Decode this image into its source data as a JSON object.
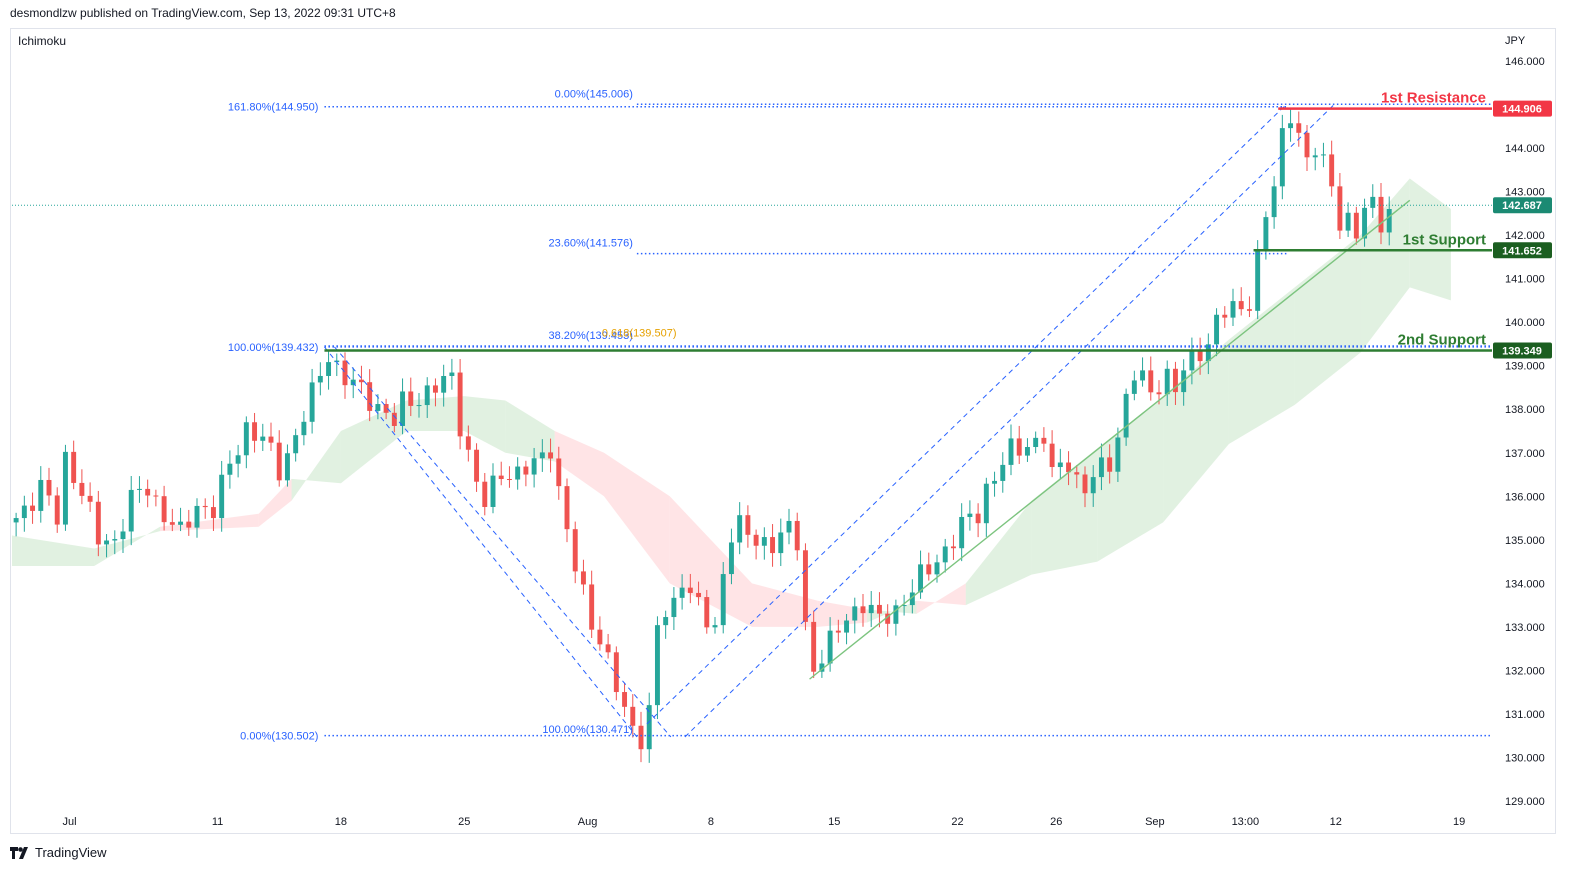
{
  "header": {
    "published": "desmondlzw published on TradingView.com, Sep 13, 2022 09:31 UTC+8"
  },
  "indicator": {
    "name": "Ichimoku"
  },
  "branding": {
    "logo_text": "TradingView"
  },
  "colors": {
    "up": "#26a69a",
    "down": "#ef5350",
    "fib": "#2962ff",
    "support": "#2e7d32",
    "resistance": "#f23645",
    "trendline": "#7cc47f",
    "cloud_green": "#c8e6c9",
    "cloud_red": "#ffcdd2"
  },
  "chart_data": {
    "type": "candlestick",
    "symbol_currency": "JPY",
    "y_axis": {
      "min": 128.75,
      "max": 146.6,
      "ticks": [
        146.0,
        145.0,
        144.0,
        143.0,
        142.0,
        141.0,
        140.0,
        139.0,
        138.0,
        137.0,
        136.0,
        135.0,
        134.0,
        133.0,
        132.0,
        131.0,
        130.0,
        129.0
      ]
    },
    "y_tick_labels": [
      "146.000",
      "145.000",
      "144.000",
      "143.000",
      "142.000",
      "141.000",
      "140.000",
      "139.000",
      "138.000",
      "137.000",
      "136.000",
      "135.000",
      "134.000",
      "133.000",
      "132.000",
      "131.000",
      "130.000",
      "129.000"
    ],
    "x_axis": {
      "bars": 180,
      "labels": [
        {
          "label": "Jul",
          "bar": 7
        },
        {
          "label": "11",
          "bar": 25
        },
        {
          "label": "18",
          "bar": 40
        },
        {
          "label": "25",
          "bar": 55
        },
        {
          "label": "Aug",
          "bar": 70
        },
        {
          "label": "8",
          "bar": 85
        },
        {
          "label": "15",
          "bar": 100
        },
        {
          "label": "22",
          "bar": 115
        },
        {
          "label": "26",
          "bar": 127
        },
        {
          "label": "Sep",
          "bar": 139
        },
        {
          "label": "13:00",
          "bar": 150
        },
        {
          "label": "12",
          "bar": 161
        },
        {
          "label": "19",
          "bar": 176
        }
      ]
    },
    "price_path": [
      [
        0,
        135.5
      ],
      [
        3,
        136.2
      ],
      [
        5,
        135.5
      ],
      [
        6,
        136.9
      ],
      [
        8,
        136.1
      ],
      [
        10,
        135.0
      ],
      [
        12,
        135.0
      ],
      [
        14,
        135.9
      ],
      [
        16,
        136.2
      ],
      [
        18,
        135.6
      ],
      [
        20,
        135.1
      ],
      [
        22,
        135.8
      ],
      [
        24,
        135.7
      ],
      [
        26,
        136.7
      ],
      [
        28,
        137.6
      ],
      [
        30,
        137.3
      ],
      [
        32,
        136.6
      ],
      [
        34,
        137.4
      ],
      [
        36,
        138.3
      ],
      [
        38,
        139.3
      ],
      [
        40,
        138.7
      ],
      [
        42,
        138.4
      ],
      [
        44,
        138.1
      ],
      [
        46,
        137.7
      ],
      [
        47,
        138.1
      ],
      [
        49,
        138.3
      ],
      [
        51,
        138.5
      ],
      [
        53,
        138.7
      ],
      [
        54,
        137.7
      ],
      [
        56,
        136.3
      ],
      [
        57,
        135.8
      ],
      [
        59,
        136.6
      ],
      [
        61,
        136.5
      ],
      [
        63,
        136.7
      ],
      [
        65,
        137.2
      ],
      [
        66,
        136.1
      ],
      [
        67,
        135.2
      ],
      [
        68,
        134.3
      ],
      [
        70,
        133.2
      ],
      [
        72,
        132.2
      ],
      [
        74,
        131.0
      ],
      [
        76,
        130.5
      ],
      [
        77,
        131.0
      ],
      [
        78,
        133.0
      ],
      [
        80,
        133.5
      ],
      [
        81,
        134.2
      ],
      [
        82,
        133.8
      ],
      [
        84,
        133.1
      ],
      [
        85,
        132.9
      ],
      [
        86,
        134.3
      ],
      [
        87,
        135.2
      ],
      [
        88,
        135.3
      ],
      [
        90,
        134.9
      ],
      [
        92,
        135.0
      ],
      [
        94,
        135.2
      ],
      [
        95,
        134.9
      ],
      [
        96,
        133.0
      ],
      [
        97,
        132.1
      ],
      [
        99,
        132.6
      ],
      [
        100,
        132.9
      ],
      [
        101,
        133.2
      ],
      [
        103,
        133.6
      ],
      [
        105,
        133.1
      ],
      [
        107,
        133.4
      ],
      [
        109,
        133.9
      ],
      [
        111,
        134.3
      ],
      [
        113,
        134.8
      ],
      [
        115,
        135.3
      ],
      [
        117,
        135.6
      ],
      [
        118,
        136.2
      ],
      [
        119,
        136.5
      ],
      [
        121,
        137.0
      ],
      [
        123,
        137.2
      ],
      [
        125,
        137.4
      ],
      [
        126,
        136.4
      ],
      [
        127,
        136.7
      ],
      [
        128,
        136.8
      ],
      [
        129,
        136.4
      ],
      [
        130,
        136.2
      ],
      [
        132,
        136.6
      ],
      [
        133,
        136.8
      ],
      [
        134,
        137.4
      ],
      [
        135,
        138.3
      ],
      [
        136,
        138.8
      ],
      [
        138,
        138.4
      ],
      [
        140,
        138.8
      ],
      [
        141,
        138.5
      ],
      [
        142,
        138.8
      ],
      [
        143,
        139.1
      ],
      [
        144,
        139.4
      ],
      [
        145,
        139.5
      ],
      [
        146,
        140.1
      ],
      [
        147,
        140.2
      ],
      [
        148,
        140.2
      ],
      [
        149,
        140.4
      ],
      [
        150,
        140.5
      ],
      [
        151,
        141.5
      ],
      [
        152,
        142.5
      ],
      [
        153,
        143.0
      ],
      [
        154,
        144.3
      ],
      [
        155,
        144.9
      ],
      [
        156,
        144.3
      ],
      [
        157,
        143.7
      ],
      [
        158,
        143.9
      ],
      [
        159,
        143.6
      ],
      [
        160,
        143.3
      ],
      [
        161,
        142.3
      ],
      [
        162,
        142.3
      ],
      [
        163,
        142.0
      ],
      [
        164,
        142.5
      ],
      [
        165,
        142.8
      ],
      [
        166,
        142.4
      ],
      [
        167,
        142.6
      ]
    ],
    "fibonacci_retracement_down": {
      "from": {
        "bar": 38,
        "price": 139.432
      },
      "to": {
        "bar": 76,
        "price": 130.471
      },
      "levels": [
        {
          "label": "100.00%(139.432)",
          "price": 139.432
        },
        {
          "label": "0.00%(130.502)",
          "price": 130.502
        },
        {
          "label": "161.80%(144.950)",
          "price": 144.95
        },
        {
          "label": "100.00%(130.471)",
          "price": 130.471
        }
      ]
    },
    "fibonacci_retracement_up": {
      "from": {
        "bar": 76,
        "price": 130.471
      },
      "to": {
        "bar": 155,
        "price": 145.006
      },
      "levels": [
        {
          "label": "0.00%(145.006)",
          "price": 145.006
        },
        {
          "label": "23.60%(141.576)",
          "price": 141.576
        },
        {
          "label": "38.20%(139.453)",
          "price": 139.453
        }
      ]
    },
    "fib_extension_label": {
      "label": "0.618(139.507)",
      "price": 139.507
    },
    "horizontal_levels": [
      {
        "name": "1st Resistance",
        "price": 144.906,
        "price_label": "144.906",
        "color": "#f23645"
      },
      {
        "name": "1st Support",
        "price": 141.652,
        "price_label": "141.652",
        "color": "#2e7d32"
      },
      {
        "name": "2nd Support",
        "price": 139.349,
        "price_label": "139.349",
        "color": "#2e7d32"
      }
    ],
    "last_price": {
      "price": 142.687,
      "price_label": "142.687"
    },
    "trendline": {
      "from": {
        "bar": 97,
        "price": 131.8
      },
      "to": {
        "bar": 170,
        "price": 142.8
      }
    },
    "ichimoku_cloud": [
      [
        0,
        135.1,
        134.4,
        "g"
      ],
      [
        10,
        134.8,
        134.4,
        "g"
      ],
      [
        18,
        135.2,
        135.3,
        "r"
      ],
      [
        30,
        135.3,
        135.6,
        "r"
      ],
      [
        34,
        135.9,
        136.4,
        "g"
      ],
      [
        40,
        137.5,
        136.3,
        "g"
      ],
      [
        48,
        138.2,
        137.5,
        "g"
      ],
      [
        55,
        138.3,
        137.5,
        "g"
      ],
      [
        60,
        138.2,
        137.0,
        "g"
      ],
      [
        66,
        137.5,
        136.8,
        "r"
      ],
      [
        72,
        137.0,
        136.0,
        "r"
      ],
      [
        80,
        136.0,
        134.0,
        "r"
      ],
      [
        90,
        134.0,
        133.0,
        "r"
      ],
      [
        98,
        133.6,
        133.0,
        "r"
      ],
      [
        104,
        133.4,
        133.1,
        "g"
      ],
      [
        110,
        133.3,
        133.6,
        "r"
      ],
      [
        116,
        134.0,
        133.5,
        "g"
      ],
      [
        124,
        135.9,
        134.2,
        "g"
      ],
      [
        132,
        137.1,
        134.5,
        "g"
      ],
      [
        140,
        138.3,
        135.4,
        "g"
      ],
      [
        148,
        139.6,
        137.2,
        "g"
      ],
      [
        156,
        140.8,
        138.1,
        "g"
      ],
      [
        164,
        142.0,
        139.3,
        "g"
      ],
      [
        170,
        143.3,
        140.8,
        "g"
      ],
      [
        175,
        142.6,
        140.5,
        "g"
      ]
    ]
  }
}
